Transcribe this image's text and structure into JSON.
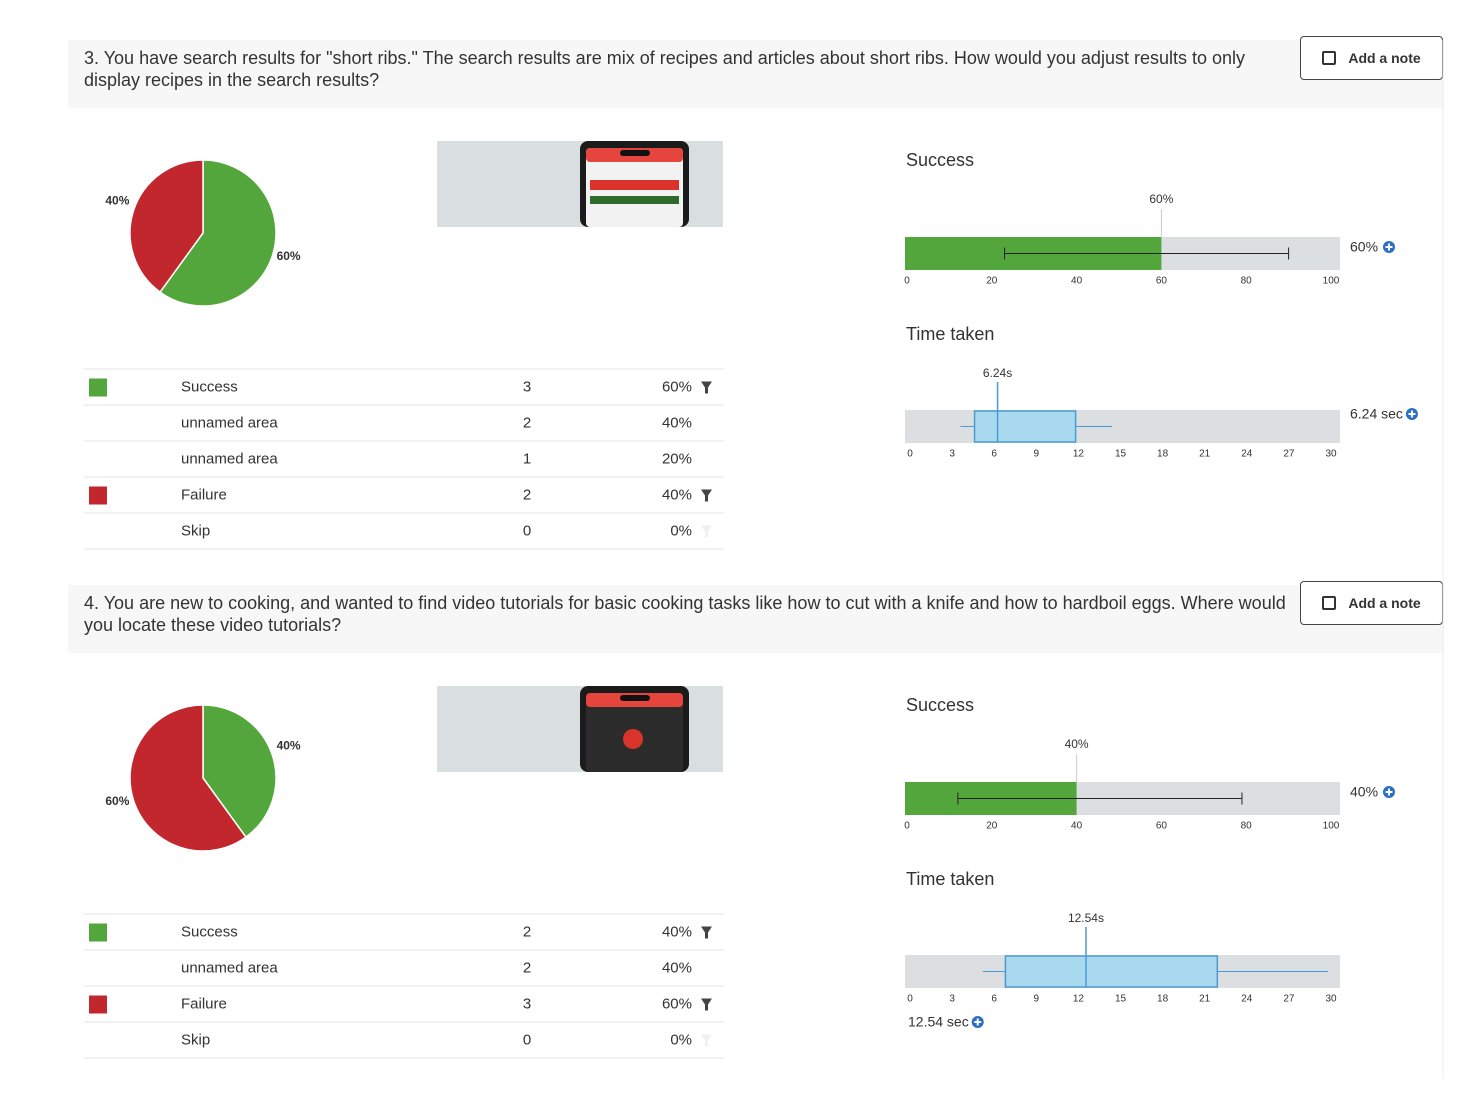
{
  "questions": [
    {
      "text": "3. You have search results for \"short ribs.\" The search results are mix of recipes and articles about short ribs. How would you adjust results to only display recipes in the search results?",
      "add_note": "Add a note",
      "table": {
        "rows": [
          {
            "name": "Success",
            "count": 3,
            "percent": "60%",
            "color": "#52a63b",
            "filter": true
          },
          {
            "name": "unnamed area",
            "count": 2,
            "percent": "40%"
          },
          {
            "name": "unnamed area",
            "count": 1,
            "percent": "20%"
          },
          {
            "name": "Failure",
            "count": 2,
            "percent": "40%",
            "color": "#c1272d",
            "filter": true
          },
          {
            "name": "Skip",
            "count": 0,
            "percent": "0%",
            "filter": "disabled"
          }
        ]
      }
    },
    {
      "text": "4. You are new to cooking, and wanted to find video tutorials for basic cooking tasks like how to cut with a knife and how to hardboil eggs. Where would you locate these video tutorials?",
      "add_note": "Add a note",
      "table": {
        "rows": [
          {
            "name": "Success",
            "count": 2,
            "percent": "40%",
            "color": "#52a63b",
            "filter": true
          },
          {
            "name": "unnamed area",
            "count": 2,
            "percent": "40%"
          },
          {
            "name": "Failure",
            "count": 3,
            "percent": "60%",
            "color": "#c1272d",
            "filter": true
          },
          {
            "name": "Skip",
            "count": 0,
            "percent": "0%",
            "filter": "disabled"
          }
        ]
      }
    }
  ],
  "chart_data": [
    {
      "type": "pie",
      "values": [
        60,
        40
      ],
      "value_labels": [
        "60%",
        "40%"
      ],
      "colors": [
        "#52a63b",
        "#c1272d"
      ]
    },
    {
      "type": "bar",
      "title": "Success",
      "values": [
        60
      ],
      "value_labels": [
        "60%"
      ],
      "error_low": [
        23
      ],
      "error_high": [
        90
      ],
      "summary": "60%",
      "color": "#52a63b",
      "xlim": [
        0,
        100
      ],
      "xticks": [
        0,
        20,
        40,
        60,
        80,
        100
      ]
    },
    {
      "type": "box",
      "title": "Time taken",
      "whisker_low": 3.6,
      "q1": 4.6,
      "median": 6.24,
      "q3": 11.8,
      "whisker_high": 14.4,
      "median_label": "6.24s",
      "summary": "6.24 sec",
      "color": "#a9d9ef",
      "xlim": [
        0,
        30
      ],
      "xticks": [
        0,
        3,
        6,
        9,
        12,
        15,
        18,
        21,
        24,
        27,
        30
      ]
    },
    {
      "type": "pie",
      "values": [
        40,
        60
      ],
      "value_labels": [
        "40%",
        "60%"
      ],
      "colors": [
        "#52a63b",
        "#c1272d"
      ]
    },
    {
      "type": "bar",
      "title": "Success",
      "values": [
        40
      ],
      "value_labels": [
        "40%"
      ],
      "error_low": [
        12
      ],
      "error_high": [
        79
      ],
      "summary": "40%",
      "color": "#52a63b",
      "xlim": [
        0,
        100
      ],
      "xticks": [
        0,
        20,
        40,
        60,
        80,
        100
      ]
    },
    {
      "type": "box",
      "title": "Time taken",
      "whisker_low": 5.2,
      "q1": 6.8,
      "median": 12.54,
      "q3": 21.9,
      "whisker_high": 29.8,
      "median_label": "12.54s",
      "summary": "12.54 sec",
      "color": "#a9d9ef",
      "xlim": [
        0,
        30
      ],
      "xticks": [
        0,
        3,
        6,
        9,
        12,
        15,
        18,
        21,
        24,
        27,
        30
      ]
    }
  ]
}
